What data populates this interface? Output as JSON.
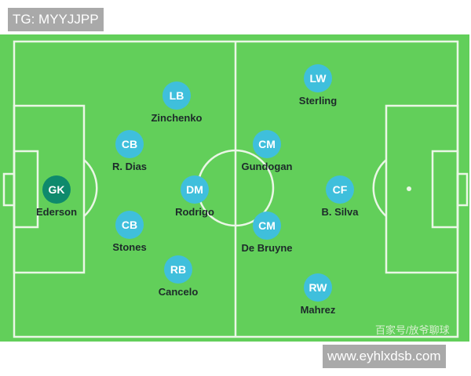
{
  "watermark_top": "TG: MYYJJPP",
  "watermark_bottom": "www.eyhlxdsb.com",
  "source": "百家号/放爷聊球",
  "colors": {
    "pitch": "#62cf5a",
    "lines": "#eaf7e6",
    "player": "#3fbfdc",
    "goalkeeper": "#0e8a6c"
  },
  "players": [
    {
      "pos": "GK",
      "name": "Ederson"
    },
    {
      "pos": "LB",
      "name": "Zinchenko"
    },
    {
      "pos": "CB",
      "name": "R. Dias"
    },
    {
      "pos": "CB",
      "name": "Stones"
    },
    {
      "pos": "RB",
      "name": "Cancelo"
    },
    {
      "pos": "DM",
      "name": "Rodrigo"
    },
    {
      "pos": "CM",
      "name": "Gundogan"
    },
    {
      "pos": "CM",
      "name": "De Bruyne"
    },
    {
      "pos": "LW",
      "name": "Sterling"
    },
    {
      "pos": "CF",
      "name": "B. Silva"
    },
    {
      "pos": "RW",
      "name": "Mahrez"
    }
  ]
}
